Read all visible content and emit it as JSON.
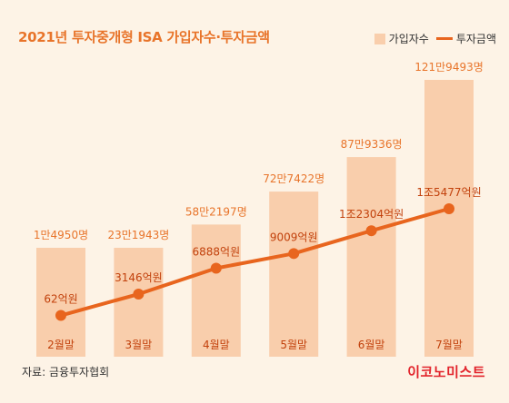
{
  "title": "2021년 투자중개형 ISA 가입자수·투자금액",
  "source": "자료: 금융투자협회",
  "brand": "이코노미스트",
  "colors": {
    "background": "#fdf3e6",
    "bar": "#f9ceac",
    "line": "#e8651e",
    "title": "#e8742a",
    "brand": "#e2232b",
    "bar_label": "#e8742a",
    "line_label": "#c2410c",
    "category_label": "#c2410c"
  },
  "chart_data": {
    "type": "bar",
    "categories": [
      "2월말",
      "3월말",
      "4월말",
      "5월말",
      "6월말",
      "7월말"
    ],
    "series": [
      {
        "name": "가입자수",
        "type": "bar",
        "values": [
          14950,
          231943,
          582197,
          727422,
          879336,
          1219493
        ],
        "labels": [
          "1만4950명",
          "23만1943명",
          "58만2197명",
          "72만7422명",
          "87만9336명",
          "121만9493명"
        ]
      },
      {
        "name": "투자금액",
        "type": "line",
        "values": [
          62,
          3146,
          6888,
          9009,
          12304,
          15477
        ],
        "labels": [
          "62억원",
          "3146억원",
          "6888억원",
          "9009억원",
          "1조2304억원",
          "1조5477억원"
        ]
      }
    ],
    "legend": "top-right",
    "grid": false
  }
}
